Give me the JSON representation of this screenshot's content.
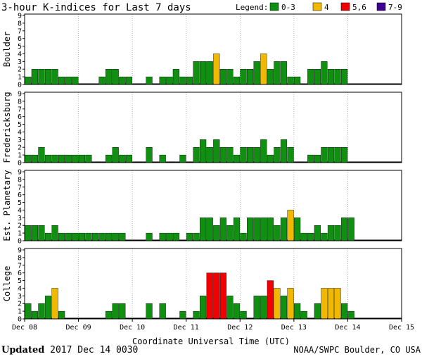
{
  "title": "3-hour K-indices for Last 7 days",
  "legend": {
    "label": "Legend:",
    "items": [
      {
        "label": "0-3",
        "color": "#109010"
      },
      {
        "label": "4",
        "color": "#f0b800"
      },
      {
        "label": "5,6",
        "color": "#f00000"
      },
      {
        "label": "7-9",
        "color": "#400090"
      }
    ]
  },
  "footer": {
    "updated_label": "Updated",
    "updated_value": "2017 Dec 14 0030",
    "credit": "NOAA/SWPC Boulder, CO USA"
  },
  "chart_data": {
    "type": "bar",
    "xlabel": "Coordinate Universal Time (UTC)",
    "x_ticks": [
      "Dec 08",
      "Dec 09",
      "Dec 10",
      "Dec 11",
      "Dec 12",
      "Dec 13",
      "Dec 14",
      "Dec 15"
    ],
    "ylim": [
      0,
      9
    ],
    "y_ticks": [
      "0",
      "1",
      "2",
      "3",
      "4",
      "5",
      "6",
      "7",
      "8",
      "9"
    ],
    "panels": [
      {
        "name": "Boulder",
        "values": [
          1,
          2,
          2,
          2,
          2,
          1,
          1,
          1,
          0,
          0,
          0,
          1,
          2,
          2,
          1,
          1,
          0,
          0,
          1,
          0,
          1,
          1,
          2,
          1,
          1,
          3,
          3,
          3,
          4,
          2,
          2,
          1,
          2,
          2,
          3,
          4,
          2,
          3,
          3,
          1,
          1,
          0,
          2,
          2,
          3,
          2,
          2,
          2
        ]
      },
      {
        "name": "Fredericksburg",
        "values": [
          1,
          1,
          2,
          1,
          1,
          1,
          1,
          1,
          1,
          1,
          0,
          0,
          1,
          2,
          1,
          1,
          0,
          0,
          2,
          0,
          1,
          0,
          0,
          1,
          0,
          2,
          3,
          2,
          3,
          2,
          2,
          1,
          2,
          2,
          2,
          3,
          1,
          2,
          3,
          2,
          0,
          0,
          1,
          1,
          2,
          2,
          2,
          2
        ]
      },
      {
        "name": "Est. Planetary",
        "values": [
          2,
          2,
          2,
          1,
          2,
          1,
          1,
          1,
          1,
          1,
          1,
          1,
          1,
          1,
          1,
          0,
          0,
          0,
          1,
          0,
          1,
          1,
          1,
          0,
          1,
          1,
          3,
          3,
          2,
          3,
          2,
          3,
          1,
          3,
          3,
          3,
          3,
          2,
          3,
          4,
          3,
          1,
          1,
          2,
          1,
          2,
          2,
          3,
          3
        ]
      },
      {
        "name": "College",
        "values": [
          2,
          1,
          2,
          3,
          4,
          1,
          0,
          0,
          0,
          0,
          0,
          0,
          1,
          2,
          2,
          0,
          0,
          0,
          2,
          0,
          2,
          0,
          0,
          1,
          0,
          1,
          3,
          6,
          6,
          6,
          3,
          2,
          1,
          0,
          3,
          3,
          5,
          4,
          3,
          4,
          2,
          1,
          0,
          2,
          4,
          4,
          4,
          2,
          1
        ]
      }
    ]
  }
}
